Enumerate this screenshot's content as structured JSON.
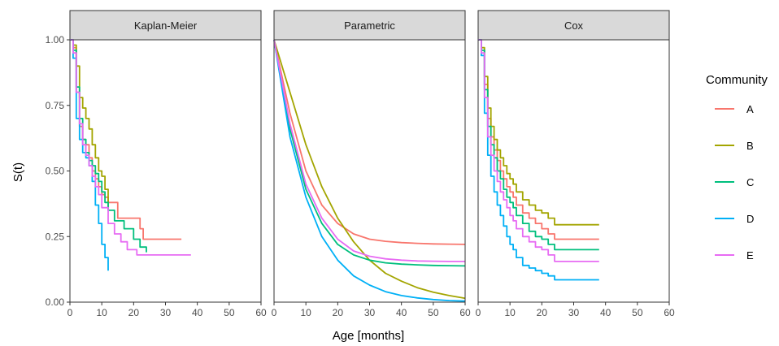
{
  "chart_data": {
    "type": "line",
    "xlabel": "Age [months]",
    "ylabel": "S(t)",
    "xlim": [
      0,
      60
    ],
    "ylim": [
      0,
      1
    ],
    "x_ticks": [
      "0",
      "10",
      "20",
      "30",
      "40",
      "50",
      "60"
    ],
    "y_ticks": [
      "0.00",
      "0.25",
      "0.50",
      "0.75",
      "1.00"
    ],
    "grid": false,
    "legend": {
      "title": "Community",
      "placement": "right",
      "entries": [
        "A",
        "B",
        "C",
        "D",
        "E"
      ]
    },
    "colors": {
      "A": "#F8766D",
      "B": "#A3A500",
      "C": "#00BF7D",
      "D": "#00B0F6",
      "E": "#E76BF3"
    },
    "panels": [
      {
        "title": "Kaplan-Meier",
        "step": true,
        "series": [
          {
            "name": "A",
            "x": [
              0,
              1,
              2,
              3,
              4,
              5,
              6,
              7,
              8,
              9,
              10,
              11,
              12,
              15,
              22,
              23,
              35
            ],
            "y": [
              1.0,
              0.97,
              0.8,
              0.67,
              0.62,
              0.6,
              0.55,
              0.5,
              0.47,
              0.44,
              0.41,
              0.4,
              0.38,
              0.32,
              0.28,
              0.24,
              0.24
            ]
          },
          {
            "name": "B",
            "x": [
              0,
              1,
              2,
              3,
              4,
              5,
              6,
              7,
              8,
              9,
              10,
              11,
              12
            ],
            "y": [
              1.0,
              0.98,
              0.9,
              0.78,
              0.74,
              0.7,
              0.66,
              0.6,
              0.55,
              0.5,
              0.48,
              0.43,
              0.36
            ]
          },
          {
            "name": "C",
            "x": [
              0,
              1,
              2,
              3,
              4,
              5,
              6,
              7,
              8,
              9,
              10,
              11,
              12,
              14,
              17,
              20,
              22,
              24
            ],
            "y": [
              1.0,
              0.96,
              0.82,
              0.7,
              0.62,
              0.57,
              0.54,
              0.52,
              0.49,
              0.46,
              0.42,
              0.38,
              0.35,
              0.31,
              0.28,
              0.24,
              0.21,
              0.19
            ]
          },
          {
            "name": "D",
            "x": [
              0,
              1,
              2,
              3,
              4,
              5,
              6,
              7,
              8,
              9,
              10,
              11,
              12
            ],
            "y": [
              1.0,
              0.93,
              0.7,
              0.62,
              0.57,
              0.55,
              0.52,
              0.46,
              0.37,
              0.3,
              0.22,
              0.17,
              0.12
            ]
          },
          {
            "name": "E",
            "x": [
              0,
              1,
              2,
              3,
              4,
              5,
              6,
              7,
              8,
              9,
              10,
              12,
              14,
              16,
              18,
              21,
              38
            ],
            "y": [
              1.0,
              0.95,
              0.8,
              0.68,
              0.6,
              0.56,
              0.52,
              0.48,
              0.44,
              0.41,
              0.36,
              0.3,
              0.26,
              0.23,
              0.2,
              0.18,
              0.18
            ]
          }
        ]
      },
      {
        "title": "Parametric",
        "step": false,
        "series": [
          {
            "name": "A",
            "x": [
              0,
              5,
              10,
              15,
              20,
              25,
              30,
              35,
              40,
              45,
              50,
              55,
              60
            ],
            "y": [
              1.0,
              0.72,
              0.5,
              0.37,
              0.3,
              0.26,
              0.24,
              0.232,
              0.227,
              0.224,
              0.222,
              0.221,
              0.22
            ]
          },
          {
            "name": "B",
            "x": [
              0,
              5,
              10,
              15,
              20,
              25,
              30,
              35,
              40,
              45,
              50,
              55,
              60
            ],
            "y": [
              1.0,
              0.8,
              0.6,
              0.44,
              0.32,
              0.23,
              0.16,
              0.11,
              0.08,
              0.055,
              0.038,
              0.025,
              0.015
            ]
          },
          {
            "name": "C",
            "x": [
              0,
              5,
              10,
              15,
              20,
              25,
              30,
              35,
              40,
              45,
              50,
              55,
              60
            ],
            "y": [
              1.0,
              0.66,
              0.43,
              0.3,
              0.22,
              0.18,
              0.16,
              0.15,
              0.145,
              0.142,
              0.14,
              0.139,
              0.138
            ]
          },
          {
            "name": "D",
            "x": [
              0,
              5,
              10,
              15,
              20,
              25,
              30,
              35,
              40,
              45,
              50,
              55,
              60
            ],
            "y": [
              1.0,
              0.63,
              0.4,
              0.25,
              0.16,
              0.1,
              0.065,
              0.04,
              0.025,
              0.016,
              0.01,
              0.006,
              0.004
            ]
          },
          {
            "name": "E",
            "x": [
              0,
              5,
              10,
              15,
              20,
              25,
              30,
              35,
              40,
              45,
              50,
              55,
              60
            ],
            "y": [
              1.0,
              0.68,
              0.45,
              0.32,
              0.24,
              0.195,
              0.175,
              0.165,
              0.16,
              0.157,
              0.156,
              0.155,
              0.155
            ]
          }
        ]
      },
      {
        "title": "Cox",
        "step": true,
        "series": [
          {
            "name": "A",
            "x": [
              0,
              1,
              2,
              3,
              4,
              5,
              6,
              7,
              8,
              9,
              10,
              11,
              12,
              14,
              16,
              18,
              20,
              22,
              24,
              38
            ],
            "y": [
              1.0,
              0.96,
              0.83,
              0.7,
              0.63,
              0.58,
              0.54,
              0.5,
              0.47,
              0.44,
              0.42,
              0.4,
              0.37,
              0.34,
              0.32,
              0.3,
              0.28,
              0.26,
              0.24,
              0.24
            ]
          },
          {
            "name": "B",
            "x": [
              0,
              1,
              2,
              3,
              4,
              5,
              6,
              7,
              8,
              9,
              10,
              11,
              12,
              14,
              16,
              18,
              20,
              22,
              24,
              38
            ],
            "y": [
              1.0,
              0.97,
              0.86,
              0.74,
              0.67,
              0.62,
              0.58,
              0.55,
              0.52,
              0.49,
              0.47,
              0.45,
              0.42,
              0.39,
              0.37,
              0.35,
              0.34,
              0.32,
              0.295,
              0.295
            ]
          },
          {
            "name": "C",
            "x": [
              0,
              1,
              2,
              3,
              4,
              5,
              6,
              7,
              8,
              9,
              10,
              11,
              12,
              14,
              16,
              18,
              20,
              22,
              24,
              38
            ],
            "y": [
              1.0,
              0.96,
              0.81,
              0.67,
              0.6,
              0.55,
              0.5,
              0.47,
              0.43,
              0.4,
              0.38,
              0.36,
              0.33,
              0.3,
              0.27,
              0.25,
              0.24,
              0.22,
              0.2,
              0.2
            ]
          },
          {
            "name": "D",
            "x": [
              0,
              1,
              2,
              3,
              4,
              5,
              6,
              7,
              8,
              9,
              10,
              11,
              12,
              14,
              16,
              18,
              20,
              22,
              24,
              38
            ],
            "y": [
              1.0,
              0.94,
              0.72,
              0.56,
              0.48,
              0.42,
              0.37,
              0.33,
              0.29,
              0.25,
              0.22,
              0.2,
              0.17,
              0.14,
              0.13,
              0.12,
              0.11,
              0.1,
              0.085,
              0.085
            ]
          },
          {
            "name": "E",
            "x": [
              0,
              1,
              2,
              3,
              4,
              5,
              6,
              7,
              8,
              9,
              10,
              11,
              12,
              14,
              16,
              18,
              20,
              22,
              24,
              38
            ],
            "y": [
              1.0,
              0.95,
              0.78,
              0.63,
              0.56,
              0.5,
              0.46,
              0.42,
              0.39,
              0.36,
              0.33,
              0.31,
              0.28,
              0.25,
              0.23,
              0.21,
              0.2,
              0.18,
              0.155,
              0.155
            ]
          }
        ]
      }
    ]
  }
}
